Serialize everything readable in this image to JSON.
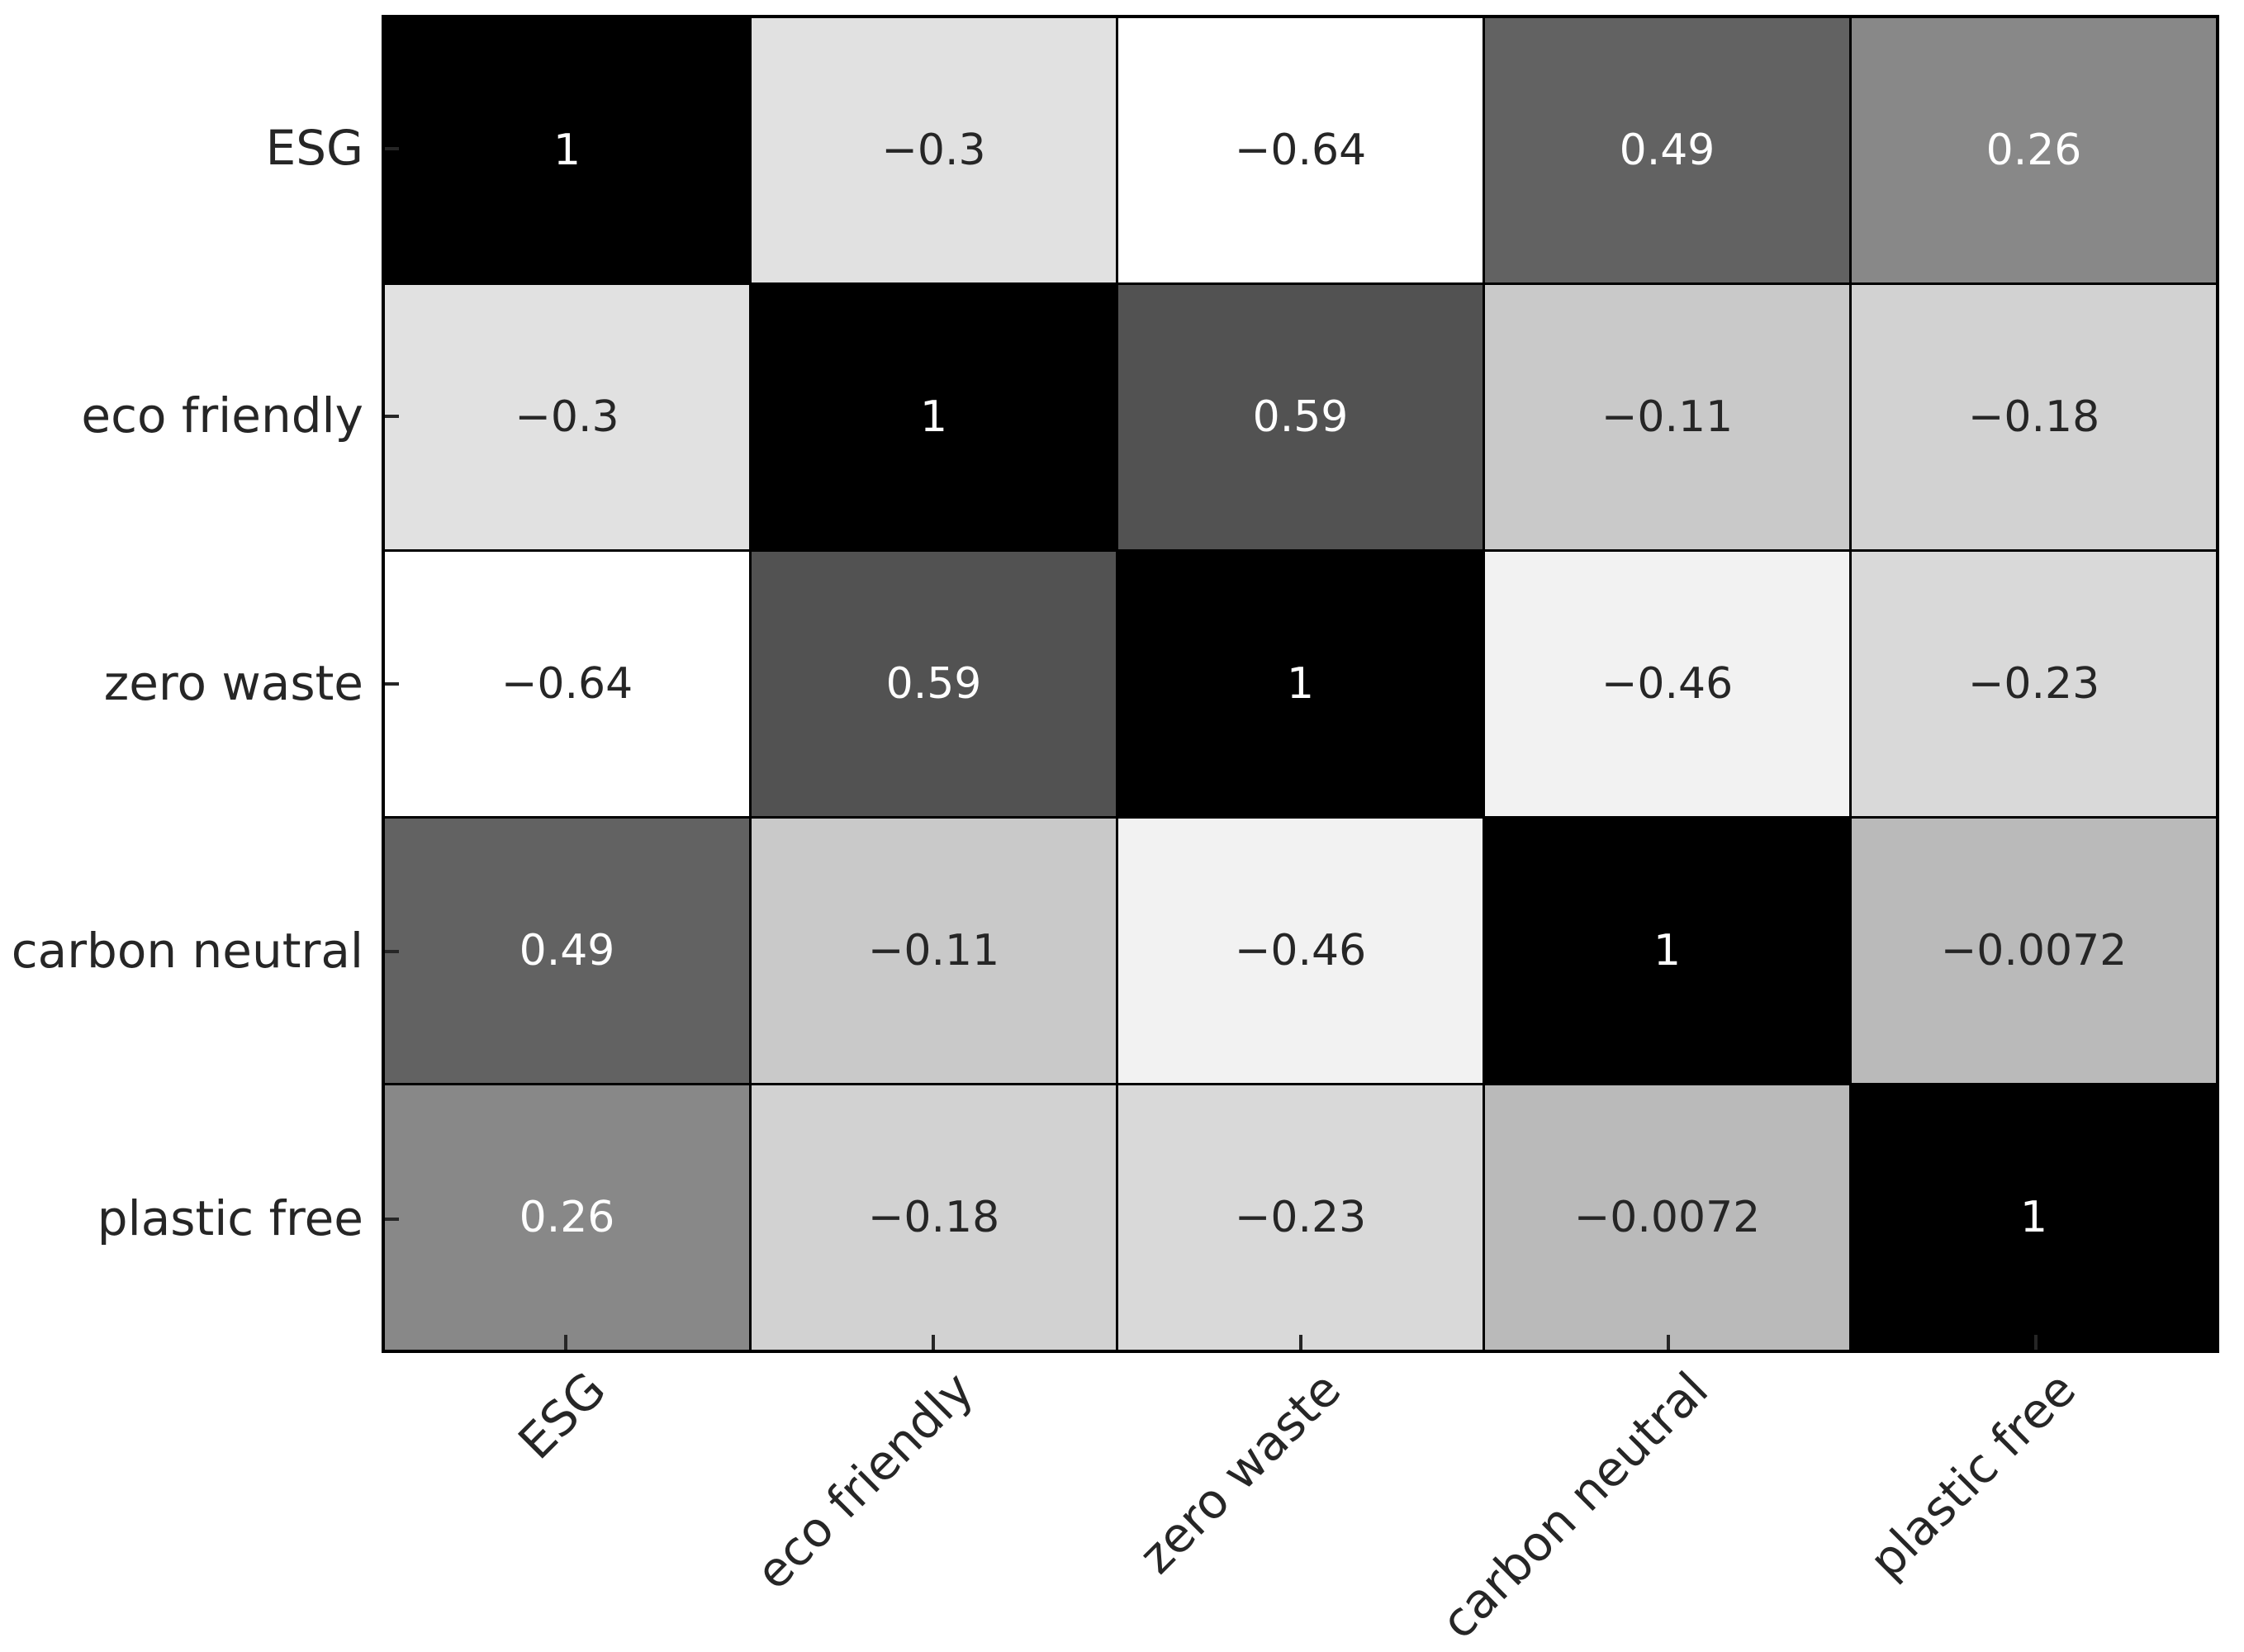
{
  "chart_data": {
    "type": "heatmap",
    "title": "",
    "xlabel": "",
    "ylabel": "",
    "categories": [
      "ESG",
      "eco friendly",
      "zero waste",
      "carbon neutral",
      "plastic free"
    ],
    "x_tick_labels": [
      "ESG",
      "eco friendly",
      "zero waste",
      "carbon neutral",
      "plastic free"
    ],
    "y_tick_labels": [
      "ESG",
      "eco friendly",
      "zero waste",
      "carbon neutral",
      "plastic free"
    ],
    "matrix": [
      [
        1,
        -0.3,
        -0.64,
        0.49,
        0.26
      ],
      [
        -0.3,
        1,
        0.59,
        -0.11,
        -0.18
      ],
      [
        -0.64,
        0.59,
        1,
        -0.46,
        -0.23
      ],
      [
        0.49,
        -0.11,
        -0.46,
        1,
        -0.0072
      ],
      [
        0.26,
        -0.18,
        -0.23,
        -0.0072,
        1
      ]
    ],
    "cell_labels": [
      [
        "1",
        "−0.3",
        "−0.64",
        "0.49",
        "0.26"
      ],
      [
        "−0.3",
        "1",
        "0.59",
        "−0.11",
        "−0.18"
      ],
      [
        "−0.64",
        "0.59",
        "1",
        "−0.46",
        "−0.23"
      ],
      [
        "0.49",
        "−0.11",
        "−0.46",
        "1",
        "−0.0072"
      ],
      [
        "0.26",
        "−0.18",
        "−0.23",
        "−0.0072",
        "1"
      ]
    ],
    "colormap": "Greys",
    "vmin": -0.64,
    "vmax": 1,
    "x_tick_rotation_deg": 45,
    "grid_on": true,
    "legend": "none",
    "style": {
      "cell_border_color": "#000000",
      "background_color": "#ffffff",
      "annotation_color_on_light": "#262626",
      "annotation_color_on_dark": "#ffffff",
      "axis_label_color": "#262626",
      "tick_color": "#262626"
    }
  }
}
